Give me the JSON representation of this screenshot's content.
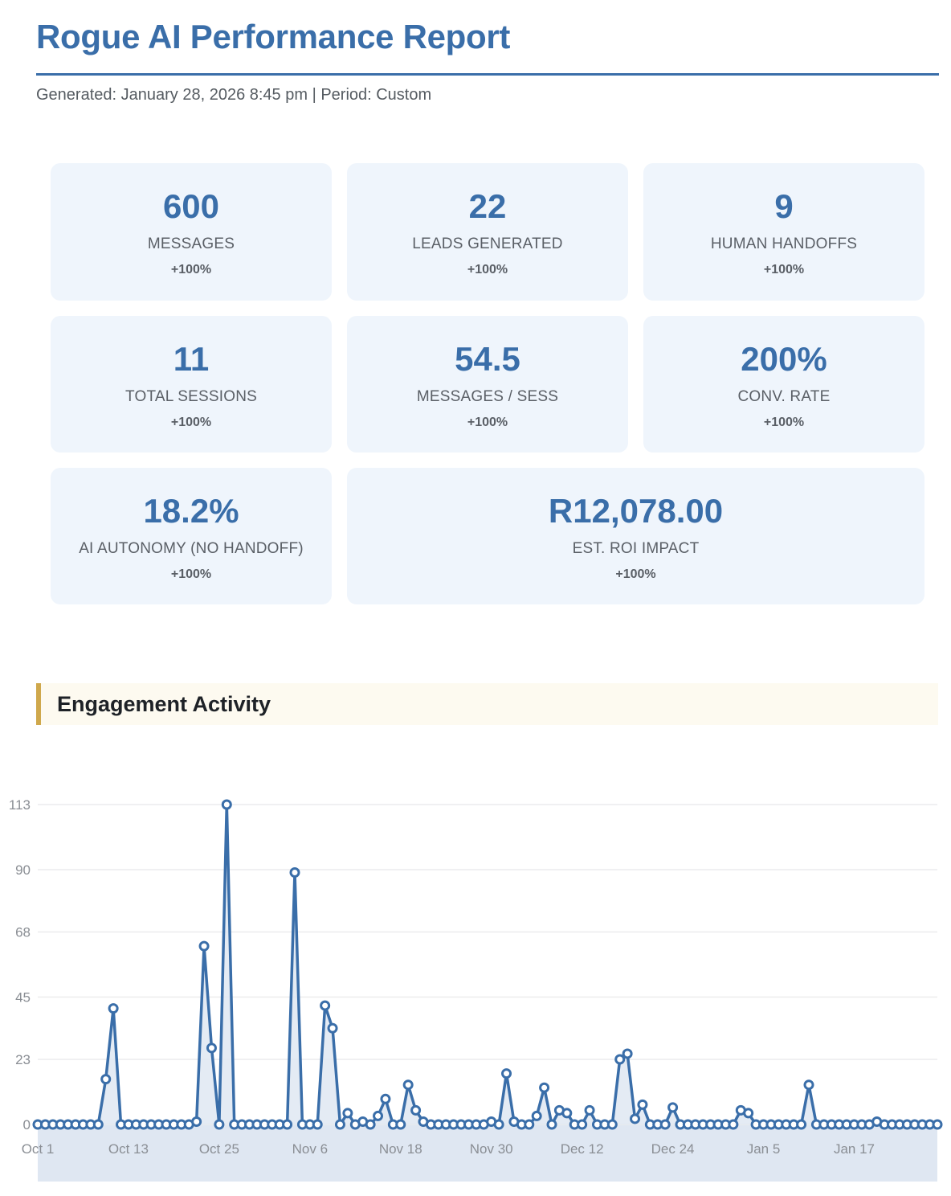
{
  "header": {
    "title": "Rogue AI Performance Report",
    "subtitle": "Generated: January 28, 2026 8:45 pm | Period: Custom"
  },
  "colors": {
    "accent": "#3a6ea9",
    "card_bg": "#eff5fc",
    "section_accent": "#cfa84c",
    "section_bg": "#fdfaf0",
    "area_fill": "#dfe7f2"
  },
  "metrics": [
    {
      "value": "600",
      "label": "MESSAGES",
      "change": "+100%"
    },
    {
      "value": "22",
      "label": "LEADS GENERATED",
      "change": "+100%"
    },
    {
      "value": "9",
      "label": "HUMAN HANDOFFS",
      "change": "+100%"
    },
    {
      "value": "11",
      "label": "TOTAL SESSIONS",
      "change": "+100%"
    },
    {
      "value": "54.5",
      "label": "MESSAGES / SESS",
      "change": "+100%"
    },
    {
      "value": "200%",
      "label": "CONV. RATE",
      "change": "+100%"
    },
    {
      "value": "18.2%",
      "label": "AI AUTONOMY (NO HANDOFF)",
      "change": "+100%"
    },
    {
      "value": "R12,078.00",
      "label": "EST. ROI IMPACT",
      "change": "+100%"
    }
  ],
  "section": {
    "title": "Engagement Activity"
  },
  "chart_data": {
    "type": "line",
    "title": "Engagement Activity",
    "xlabel": "",
    "ylabel": "",
    "start_date": "Oct 1",
    "days": 120,
    "ylim": [
      0,
      113
    ],
    "yticks": [
      0,
      23,
      45,
      68,
      90,
      113
    ],
    "xtick_labels": [
      "Oct 1",
      "Oct 13",
      "Oct 25",
      "Nov 6",
      "Nov 18",
      "Nov 30",
      "Dec 12",
      "Dec 24",
      "Jan 5",
      "Jan 17"
    ],
    "xtick_every": 12,
    "grid": true,
    "legend": "none",
    "series": [
      {
        "name": "Messages",
        "values": [
          0,
          0,
          0,
          0,
          0,
          0,
          0,
          0,
          0,
          16,
          41,
          0,
          0,
          0,
          0,
          0,
          0,
          0,
          0,
          0,
          0,
          1,
          63,
          27,
          0,
          113,
          0,
          0,
          0,
          0,
          0,
          0,
          0,
          0,
          89,
          0,
          0,
          0,
          42,
          34,
          0,
          4,
          0,
          1,
          0,
          3,
          9,
          0,
          0,
          14,
          5,
          1,
          0,
          0,
          0,
          0,
          0,
          0,
          0,
          0,
          1,
          0,
          18,
          1,
          0,
          0,
          3,
          13,
          0,
          5,
          4,
          0,
          0,
          5,
          0,
          0,
          0,
          23,
          25,
          2,
          7,
          0,
          0,
          0,
          6,
          0,
          0,
          0,
          0,
          0,
          0,
          0,
          0,
          5,
          4,
          0,
          0,
          0,
          0,
          0,
          0,
          0,
          14,
          0,
          0,
          0,
          0,
          0,
          0,
          0,
          0,
          1,
          0,
          0,
          0,
          0,
          0,
          0,
          0,
          0
        ]
      }
    ]
  }
}
